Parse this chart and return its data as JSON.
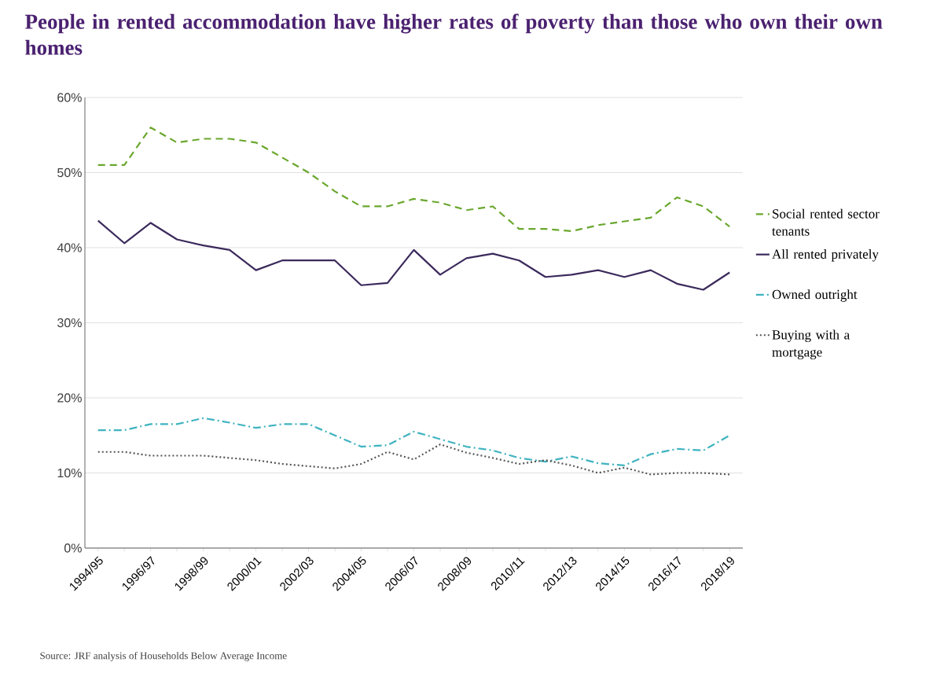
{
  "chart_data": {
    "type": "line",
    "title": "People in rented accommodation have higher rates of poverty than those who own their own homes",
    "categories": [
      "1994/95",
      null,
      "1996/97",
      null,
      "1998/99",
      null,
      "2000/01",
      null,
      "2002/03",
      null,
      "2004/05",
      null,
      "2006/07",
      null,
      "2008/09",
      null,
      "2010/11",
      null,
      "2012/13",
      null,
      "2014/15",
      null,
      "2016/17",
      null,
      "2018/19"
    ],
    "series": [
      {
        "name": "Social rented sector tenants",
        "color": "#6aa72e",
        "line_style": "dashed",
        "values": [
          51,
          51,
          56,
          54,
          54.5,
          54.5,
          54,
          52,
          50,
          47.5,
          45.5,
          45.5,
          46.5,
          46,
          45,
          45.5,
          42.5,
          42.5,
          42.2,
          43,
          43.5,
          44,
          46.7,
          45.5,
          42.8
        ]
      },
      {
        "name": "All rented privately",
        "color": "#3b2a5c",
        "line_style": "solid",
        "values": [
          43.6,
          40.6,
          43.3,
          41.1,
          40.3,
          39.7,
          37,
          38.3,
          38.3,
          38.3,
          35,
          35.3,
          39.7,
          36.4,
          38.6,
          39.2,
          38.3,
          36.1,
          36.4,
          37,
          36.1,
          37,
          35.2,
          34.4,
          36.7
        ]
      },
      {
        "name": "Owned outright",
        "color": "#3fb3c0",
        "line_style": "dashdot",
        "values": [
          15.7,
          15.7,
          16.5,
          16.5,
          17.3,
          16.7,
          16,
          16.5,
          16.5,
          15,
          13.5,
          13.7,
          15.5,
          14.5,
          13.5,
          13,
          12,
          11.5,
          12.2,
          11.3,
          11,
          12.5,
          13.2,
          13,
          15
        ]
      },
      {
        "name": "Buying with a mortgage",
        "color": "#555555",
        "line_style": "dotted",
        "values": [
          12.8,
          12.8,
          12.3,
          12.3,
          12.3,
          12,
          11.7,
          11.2,
          10.9,
          10.6,
          11.2,
          12.8,
          11.8,
          13.8,
          12.7,
          12,
          11.2,
          11.7,
          11,
          10,
          10.7,
          9.8,
          10,
          10,
          9.8
        ]
      }
    ],
    "ylim": [
      0,
      60
    ],
    "yticks": [
      {
        "value": 0,
        "label": "0%"
      },
      {
        "value": 10,
        "label": "10%"
      },
      {
        "value": 20,
        "label": "20%"
      },
      {
        "value": 30,
        "label": "30%"
      },
      {
        "value": 40,
        "label": "40%"
      },
      {
        "value": 50,
        "label": "50%"
      },
      {
        "value": 60,
        "label": "60%"
      }
    ],
    "grid": "y",
    "legend": "right",
    "marker": "none",
    "annotations": [
      "Source: JRF analysis of Households Below Average Income"
    ]
  }
}
